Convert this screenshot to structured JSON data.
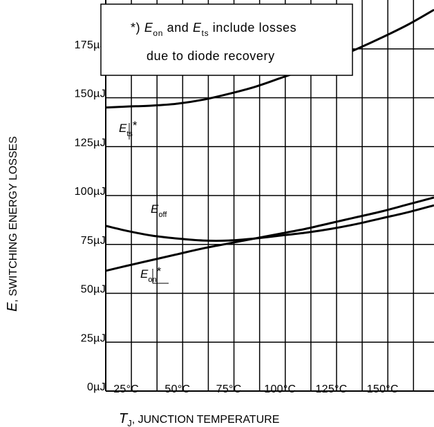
{
  "chart_data": {
    "type": "line",
    "title": "",
    "xlabel": {
      "symbol": "T",
      "subscript": "J",
      "text": ", JUNCTION TEMPERATURE"
    },
    "ylabel": {
      "symbol": "E",
      "text": ", SWITCHING ENERGY LOSSES"
    },
    "xlim": [
      15,
      175
    ],
    "ylim": [
      0,
      200
    ],
    "x_ticks": [
      25,
      50,
      75,
      100,
      125,
      150
    ],
    "x_tick_labels": [
      "25°C",
      "50°C",
      "75°C",
      "100°C",
      "125°C",
      "150°C"
    ],
    "y_ticks": [
      0,
      25,
      50,
      75,
      100,
      125,
      150,
      175
    ],
    "y_tick_labels": [
      "0µJ",
      "25µJ",
      "50µJ",
      "75µJ",
      "100µJ",
      "125µJ",
      "150µJ",
      "175µJ"
    ],
    "grid": true,
    "series": [
      {
        "name": "Ets*",
        "symbol": "E",
        "subscript": "ts",
        "suffix": "*",
        "x": [
          15,
          25,
          37.5,
          50,
          62.5,
          75,
          87.5,
          100,
          112.5,
          125,
          137.5,
          150,
          162.5,
          175
        ],
        "y": [
          145,
          145.5,
          146,
          147,
          149,
          152,
          155.5,
          160,
          164.5,
          169.5,
          175,
          181,
          187.5,
          195
        ]
      },
      {
        "name": "Eoff",
        "symbol": "E",
        "subscript": "off",
        "suffix": "",
        "x": [
          15,
          25,
          37.5,
          50,
          62.5,
          75,
          87.5,
          100,
          112.5,
          125,
          137.5,
          150,
          162.5,
          175
        ],
        "y": [
          84.5,
          82,
          79.5,
          78,
          77,
          77,
          78,
          79.5,
          81,
          83,
          85.5,
          88.5,
          91.5,
          95
        ]
      },
      {
        "name": "Eon*",
        "symbol": "E",
        "subscript": "on",
        "suffix": "*",
        "x": [
          15,
          25,
          37.5,
          50,
          62.5,
          75,
          87.5,
          100,
          112.5,
          125,
          137.5,
          150,
          162.5,
          175
        ],
        "y": [
          61.5,
          64,
          67,
          70,
          73,
          75.5,
          78,
          80.5,
          83,
          86,
          89,
          92,
          95.5,
          99
        ]
      }
    ],
    "annotation": {
      "line1": {
        "prefix": "*) ",
        "sym1": "E",
        "sub1": "on",
        "mid": " and ",
        "sym2": "E",
        "sub2": "ts",
        "suffix": " include losses"
      },
      "line2": "due to diode recovery",
      "placement": "top-center"
    }
  }
}
